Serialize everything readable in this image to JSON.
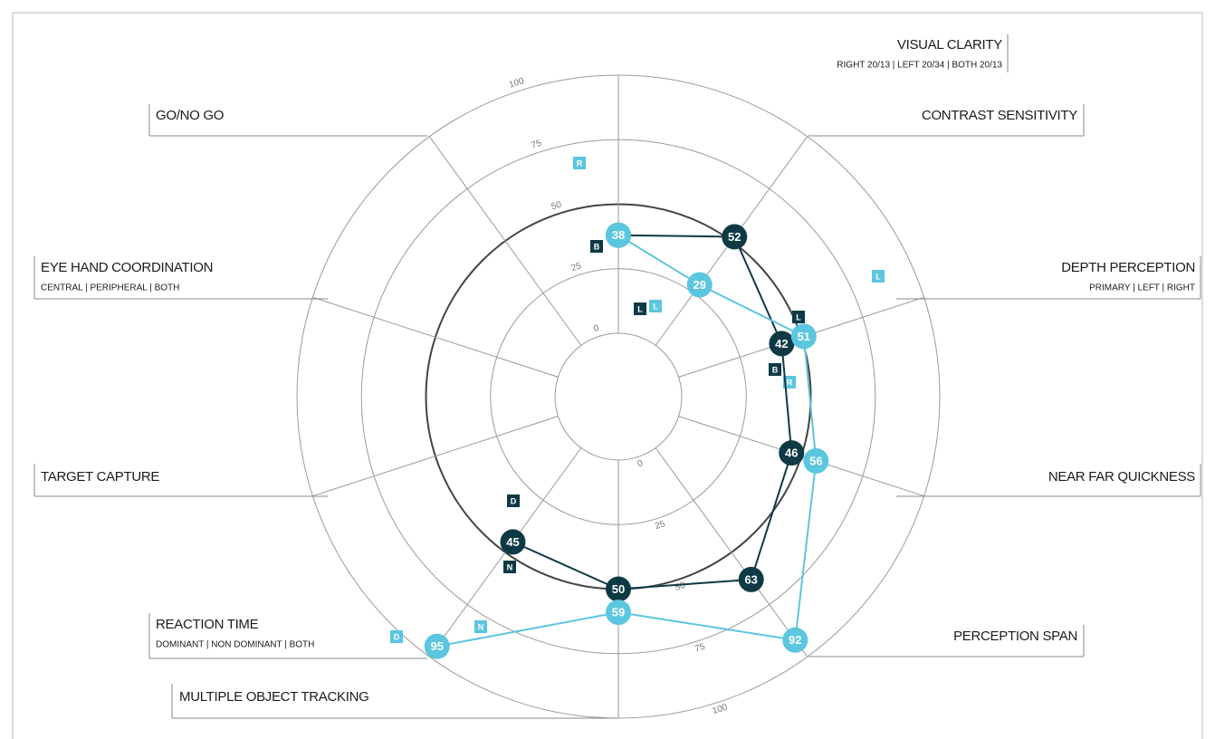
{
  "chart_data": {
    "type": "radar",
    "categories": [
      "VISUAL CLARITY",
      "CONTRAST SENSITIVITY",
      "DEPTH PERCEPTION",
      "NEAR FAR QUICKNESS",
      "PERCEPTION SPAN",
      "MULTIPLE OBJECT TRACKING",
      "REACTION TIME",
      "TARGET CAPTURE",
      "EYE HAND COORDINATION",
      "GO/NO GO"
    ],
    "category_subtitles": [
      "RIGHT 20/13 | LEFT 20/34 | BOTH 20/13",
      null,
      "PRIMARY | LEFT | RIGHT",
      null,
      null,
      null,
      "DOMINANT | NON DOMINANT |  BOTH",
      null,
      "CENTRAL | PERIPHERAL | BOTH",
      null
    ],
    "rlim": [
      0,
      100
    ],
    "rticks": [
      0,
      25,
      50,
      75,
      100
    ],
    "reference_ring": 50,
    "series": [
      {
        "color": "#0e3a45",
        "values": [
          38,
          52,
          42,
          46,
          63,
          50,
          45,
          null,
          null,
          null
        ]
      },
      {
        "color": "#5bc6df",
        "values": [
          38,
          29,
          51,
          56,
          92,
          59,
          95,
          null,
          null,
          null
        ]
      }
    ],
    "annotations": [
      {
        "text": "R",
        "color": "#5bc6df"
      },
      {
        "text": "B",
        "color": "#0e3a45"
      },
      {
        "text": "L",
        "color": "#0e3a45"
      },
      {
        "text": "L",
        "color": "#5bc6df"
      },
      {
        "text": "L",
        "color": "#5bc6df"
      },
      {
        "text": "L",
        "color": "#0e3a45"
      },
      {
        "text": "B",
        "color": "#0e3a45"
      },
      {
        "text": "R",
        "color": "#5bc6df"
      },
      {
        "text": "D",
        "color": "#0e3a45"
      },
      {
        "text": "N",
        "color": "#0e3a45"
      },
      {
        "text": "N",
        "color": "#5bc6df"
      },
      {
        "text": "D",
        "color": "#5bc6df"
      }
    ]
  }
}
